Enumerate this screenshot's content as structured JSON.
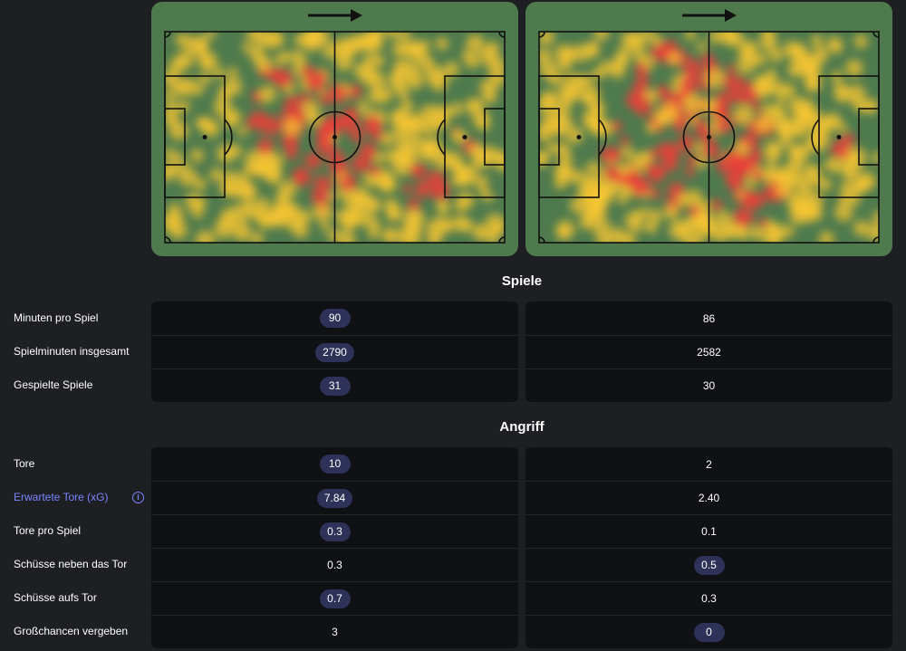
{
  "sections": {
    "spiele": "Spiele",
    "angriff": "Angriff"
  },
  "info_icon": "info-circle-icon",
  "colors": {
    "pitch": "#4e7a4e",
    "highlight_text": "#7b84ff",
    "pill": "#2e3258",
    "heat_hot": "#e8413a",
    "heat_warm": "#f7c531"
  },
  "spiele_rows": [
    {
      "label": "Minuten pro Spiel",
      "left": "90",
      "right": "86",
      "better": "left"
    },
    {
      "label": "Spielminuten insgesamt",
      "left": "2790",
      "right": "2582",
      "better": "left"
    },
    {
      "label": "Gespielte Spiele",
      "left": "31",
      "right": "30",
      "better": "left"
    }
  ],
  "angriff_rows": [
    {
      "label": "Tore",
      "left": "10",
      "right": "2",
      "better": "left"
    },
    {
      "label": "Erwartete Tore (xG)",
      "left": "7.84",
      "right": "2.40",
      "better": "left",
      "highlight": true
    },
    {
      "label": "Tore pro Spiel",
      "left": "0.3",
      "right": "0.1",
      "better": "left"
    },
    {
      "label": "Schüsse neben das Tor",
      "left": "0.3",
      "right": "0.5",
      "better": "right"
    },
    {
      "label": "Schüsse aufs Tor",
      "left": "0.7",
      "right": "0.3",
      "better": "left"
    },
    {
      "label": "Großchancen vergeben",
      "left": "3",
      "right": "0",
      "better": "right"
    }
  ]
}
